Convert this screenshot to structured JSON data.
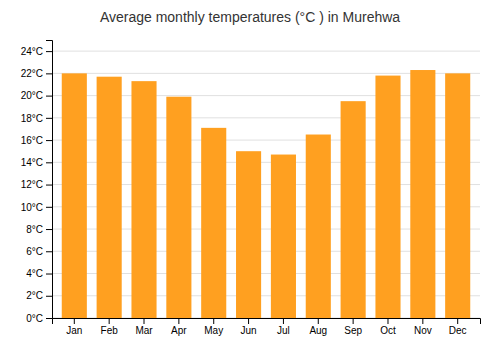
{
  "chart_data": {
    "type": "bar",
    "title": "Average monthly temperatures (°C ) in Murehwa",
    "categories": [
      "Jan",
      "Feb",
      "Mar",
      "Apr",
      "May",
      "Jun",
      "Jul",
      "Aug",
      "Sep",
      "Oct",
      "Nov",
      "Dec"
    ],
    "values": [
      22.0,
      21.7,
      21.3,
      19.9,
      17.1,
      15.0,
      14.7,
      16.5,
      19.5,
      21.8,
      22.3,
      22.0
    ],
    "color": "#FFA020",
    "ylim": [
      0,
      25
    ],
    "yticks": [
      {
        "value": 0,
        "label": "0°C"
      },
      {
        "value": 2,
        "label": "2°C"
      },
      {
        "value": 4,
        "label": "4°C"
      },
      {
        "value": 6,
        "label": "6°C"
      },
      {
        "value": 8,
        "label": "8°C"
      },
      {
        "value": 10,
        "label": "10°C"
      },
      {
        "value": 12,
        "label": "12°C"
      },
      {
        "value": 14,
        "label": "14°C"
      },
      {
        "value": 16,
        "label": "16°C"
      },
      {
        "value": 18,
        "label": "18°C"
      },
      {
        "value": 20,
        "label": "20°C"
      },
      {
        "value": 22,
        "label": "22°C"
      },
      {
        "value": 24,
        "label": "24°C"
      }
    ],
    "grid": true
  }
}
